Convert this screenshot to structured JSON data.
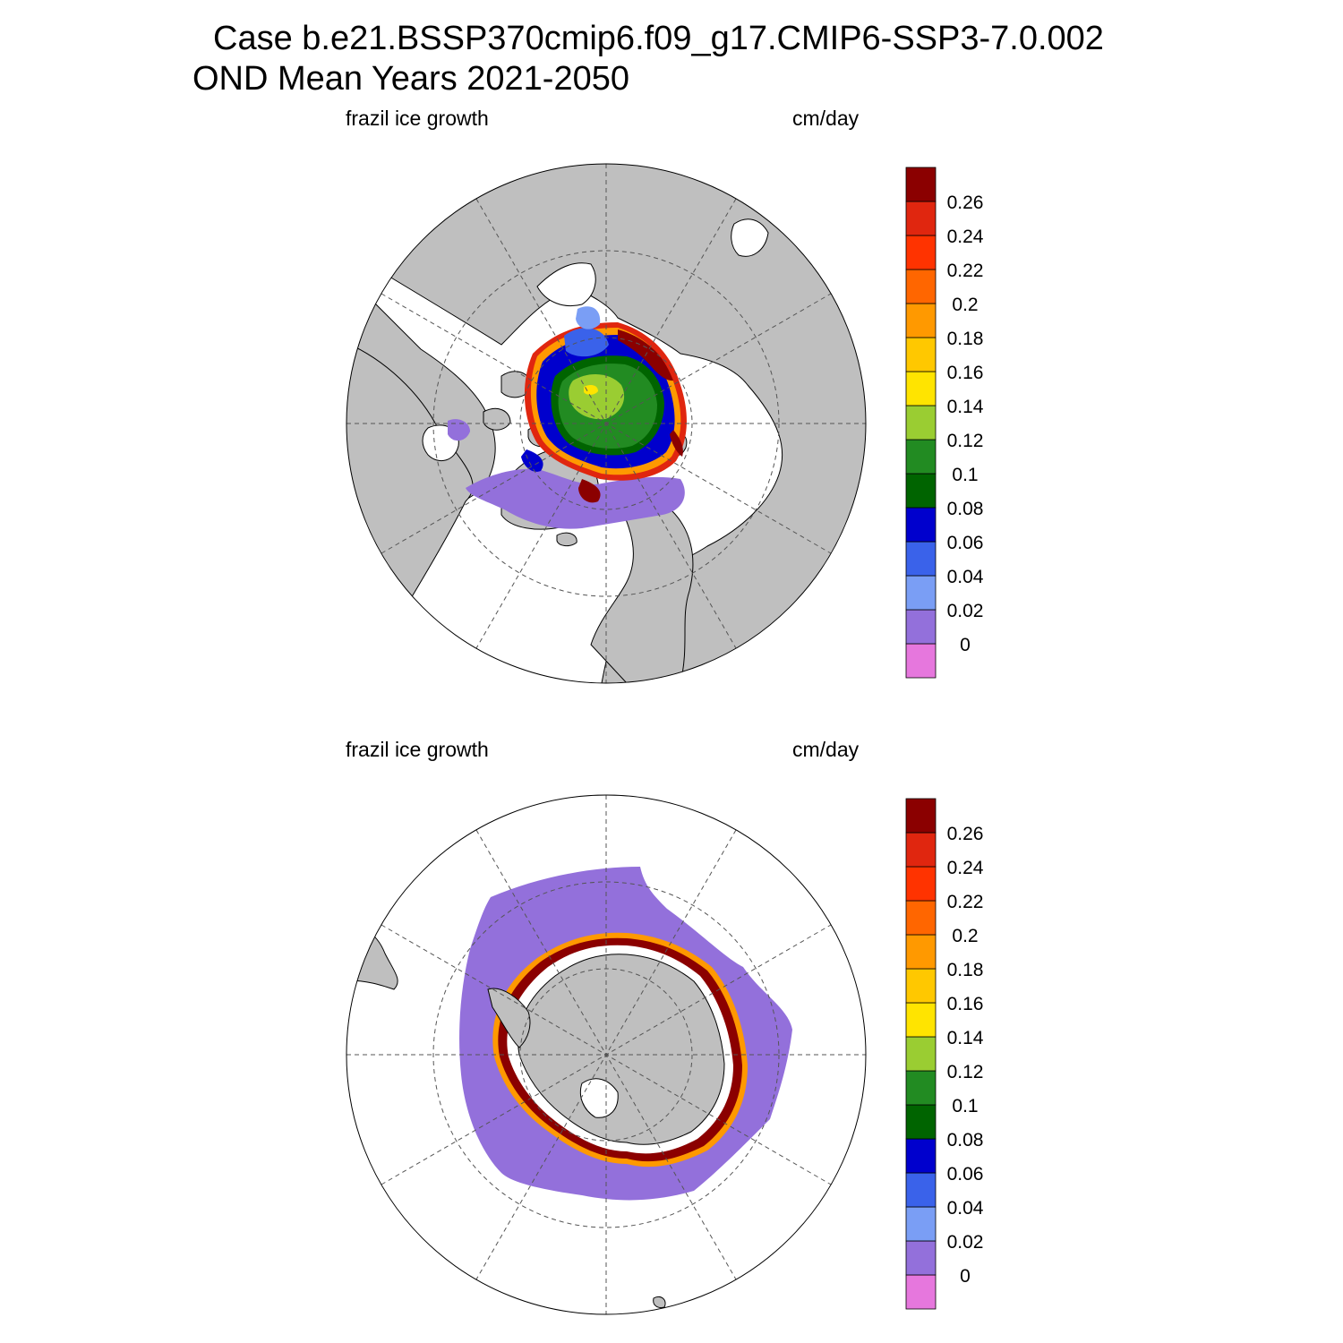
{
  "header": {
    "case_line": "Case b.e21.BSSP370cmip6.f09_g17.CMIP6-SSP3-7.0.002",
    "period_line": "OND Mean   Years 2021-2050"
  },
  "colors": {
    "land": "#bfbfbf",
    "ocean_no_data": "#ffffff",
    "levels": [
      "#e677dd",
      "#9370db",
      "#7a9ef5",
      "#3a62ea",
      "#0000cd",
      "#006400",
      "#228b22",
      "#9acd32",
      "#ffe400",
      "#ffc800",
      "#ff9900",
      "#ff6600",
      "#ff3300",
      "#e0260f",
      "#8b0000"
    ]
  },
  "panels": [
    {
      "id": "north",
      "hemisphere": "Arctic",
      "left_label": "frazil ice growth",
      "right_label": "cm/day"
    },
    {
      "id": "south",
      "hemisphere": "Antarctic",
      "left_label": "frazil ice growth",
      "right_label": "cm/day"
    }
  ],
  "colorbar": {
    "labels": [
      "0",
      "0.02",
      "0.04",
      "0.06",
      "0.08",
      "0.1",
      "0.12",
      "0.14",
      "0.16",
      "0.18",
      "0.2",
      "0.22",
      "0.24",
      "0.26"
    ]
  }
}
